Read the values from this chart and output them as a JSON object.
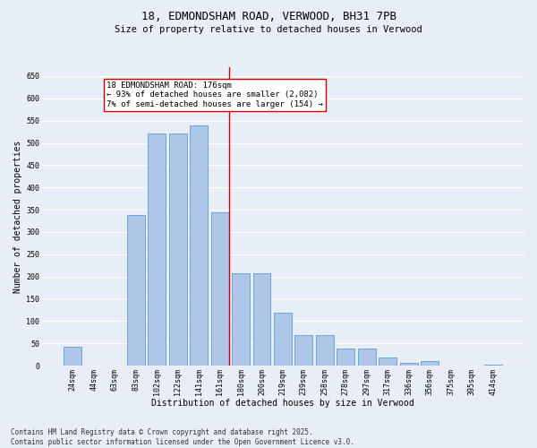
{
  "title": "18, EDMONDSHAM ROAD, VERWOOD, BH31 7PB",
  "subtitle": "Size of property relative to detached houses in Verwood",
  "xlabel": "Distribution of detached houses by size in Verwood",
  "ylabel": "Number of detached properties",
  "categories": [
    "24sqm",
    "44sqm",
    "63sqm",
    "83sqm",
    "102sqm",
    "122sqm",
    "141sqm",
    "161sqm",
    "180sqm",
    "200sqm",
    "219sqm",
    "239sqm",
    "258sqm",
    "278sqm",
    "297sqm",
    "317sqm",
    "336sqm",
    "356sqm",
    "375sqm",
    "395sqm",
    "414sqm"
  ],
  "values": [
    42,
    0,
    0,
    338,
    522,
    522,
    540,
    344,
    207,
    207,
    119,
    68,
    68,
    38,
    38,
    18,
    7,
    10,
    1,
    0,
    2
  ],
  "bar_color": "#aec6e8",
  "bar_edge_color": "#5b9bd5",
  "vline_color": "#cc0000",
  "annotation_text": "18 EDMONDSHAM ROAD: 176sqm\n← 93% of detached houses are smaller (2,082)\n7% of semi-detached houses are larger (154) →",
  "annotation_box_color": "#ffffff",
  "annotation_box_edge": "#cc0000",
  "ylim": [
    0,
    670
  ],
  "yticks": [
    0,
    50,
    100,
    150,
    200,
    250,
    300,
    350,
    400,
    450,
    500,
    550,
    600,
    650
  ],
  "footer": "Contains HM Land Registry data © Crown copyright and database right 2025.\nContains public sector information licensed under the Open Government Licence v3.0.",
  "bg_color": "#e8eef5",
  "grid_color": "#ffffff",
  "title_fontsize": 9,
  "subtitle_fontsize": 7.5,
  "axis_label_fontsize": 7,
  "tick_fontsize": 6,
  "annotation_fontsize": 6.5,
  "footer_fontsize": 5.5
}
